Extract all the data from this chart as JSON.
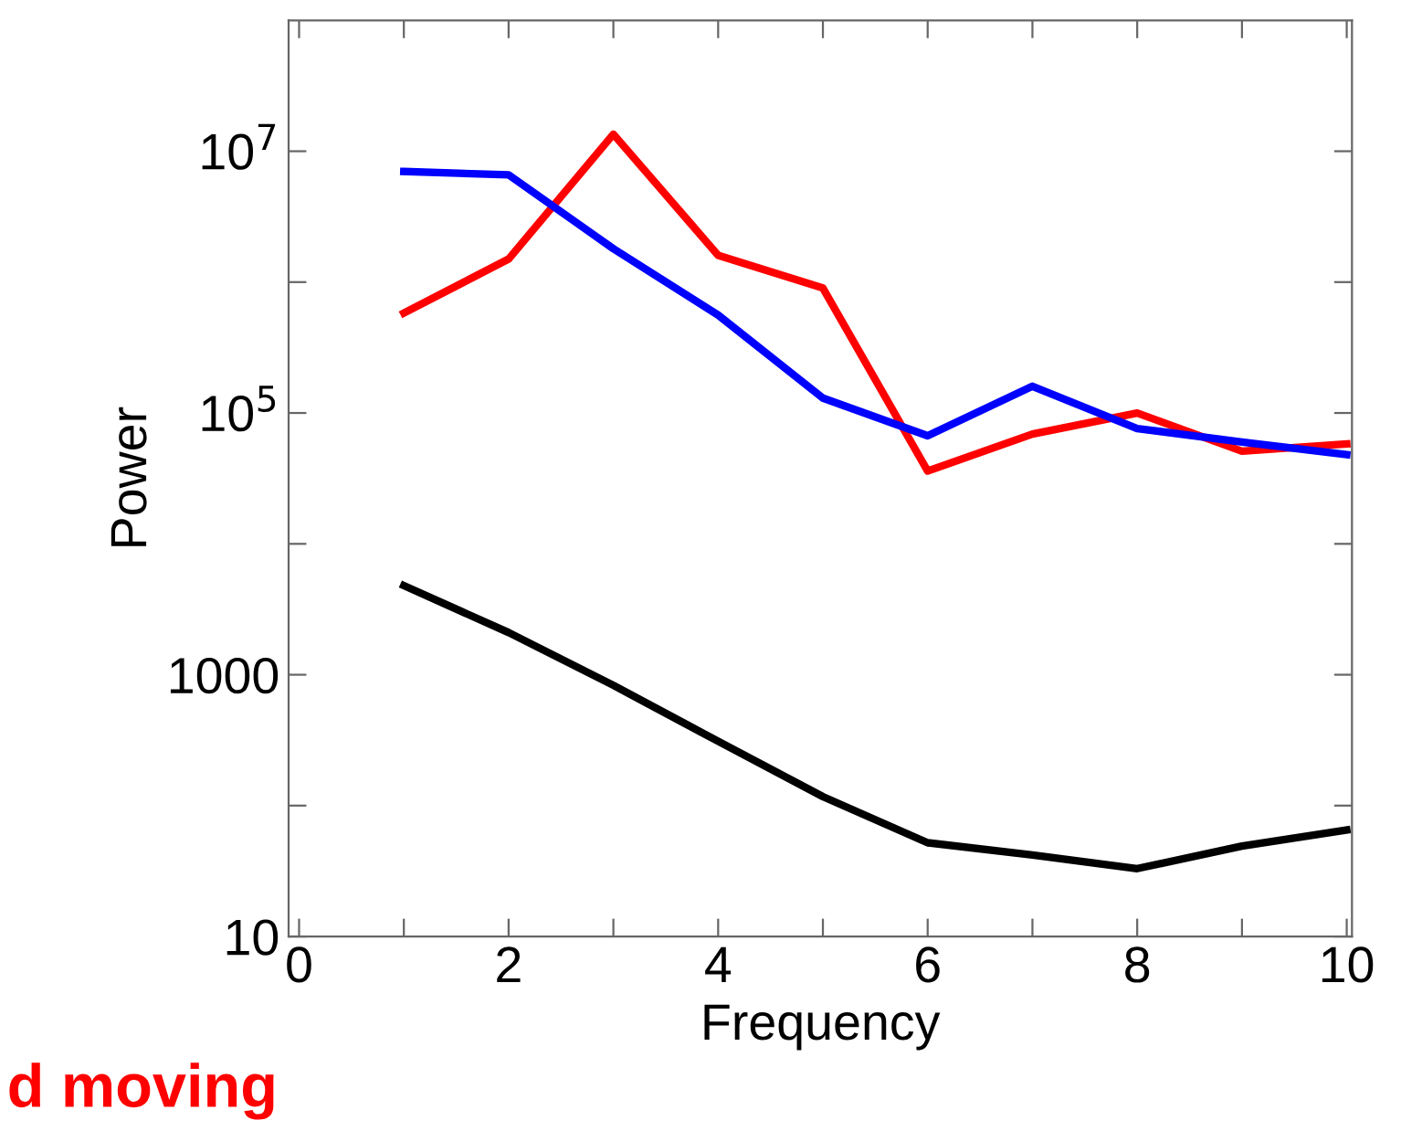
{
  "chart_data": {
    "type": "line",
    "xlabel": "Frequency",
    "ylabel": "Power",
    "log": "y",
    "grid": false,
    "line_style": "solid",
    "marker": "none",
    "x": [
      1,
      2,
      3,
      4,
      5,
      6,
      7,
      8,
      9,
      10
    ],
    "series": [
      {
        "color": "#ff0000",
        "values": [
          580000,
          1500000,
          13500000,
          1600000,
          900000,
          36000,
          69000,
          100000,
          51000,
          58000
        ]
      },
      {
        "color": "#0000ff",
        "values": [
          7000000,
          6600000,
          1800000,
          560000,
          130000,
          67000,
          160000,
          76000,
          60000,
          48000
        ]
      },
      {
        "color": "#000000",
        "values": [
          4800,
          2100,
          830,
          310,
          117,
          52,
          42,
          33,
          49,
          65
        ]
      }
    ],
    "xlim": [
      -0.1,
      10.05
    ],
    "xticks": [
      0,
      {
        "value": 1,
        "label": null
      },
      2,
      {
        "value": 3,
        "label": null
      },
      4,
      {
        "value": 5,
        "label": null
      },
      6,
      {
        "value": 7,
        "label": null
      },
      8,
      {
        "value": 9,
        "label": null
      },
      10
    ],
    "ylim": [
      10,
      100000000
    ],
    "yticks": [
      10,
      {
        "value": 100,
        "label": null
      },
      1000,
      {
        "value": 10000,
        "label": null
      },
      {
        "value": 100000,
        "label": "10$^{5}$"
      },
      {
        "value": 1000000,
        "label": null
      },
      {
        "value": 10000000,
        "label": "10$^{7}$"
      }
    ],
    "annotations": [
      "d moving"
    ]
  }
}
